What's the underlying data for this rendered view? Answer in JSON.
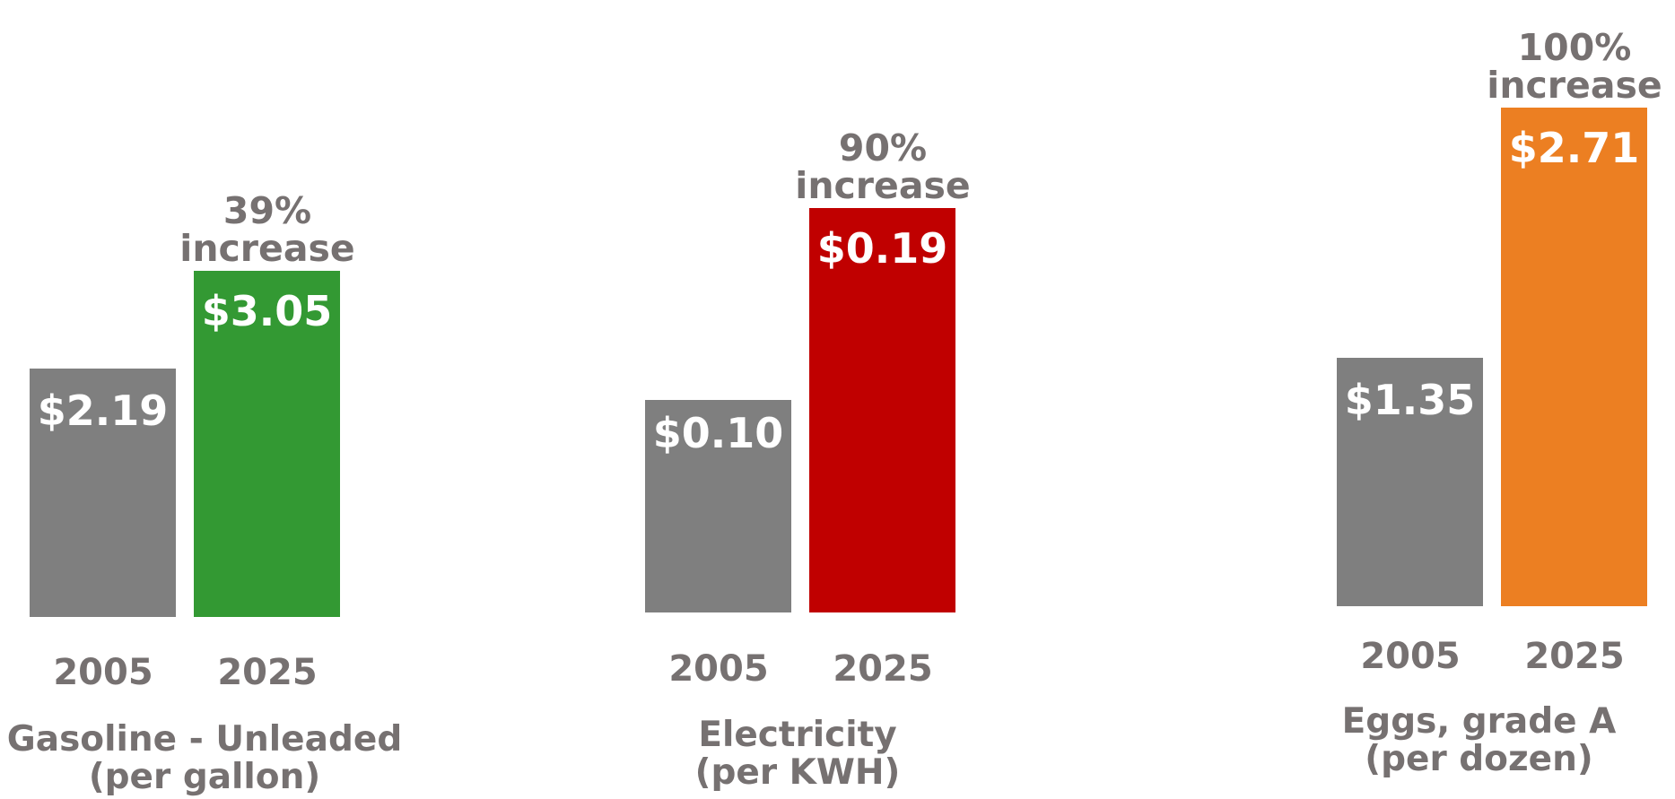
{
  "chart_data": [
    {
      "type": "bar",
      "title": "Gasoline - Unleaded",
      "subtitle": "(per gallon)",
      "categories": [
        "2005",
        "2025"
      ],
      "values": [
        2.19,
        3.05
      ],
      "value_labels": [
        "$2.19",
        "$3.05"
      ],
      "annotation": {
        "line1": "39%",
        "line2": "increase"
      },
      "colors": [
        "#7f7f7f",
        "#339933"
      ]
    },
    {
      "type": "bar",
      "title": "Electricity",
      "subtitle": "(per KWH)",
      "categories": [
        "2005",
        "2025"
      ],
      "values": [
        0.1,
        0.19
      ],
      "value_labels": [
        "$0.10",
        "$0.19"
      ],
      "annotation": {
        "line1": "90%",
        "line2": "increase"
      },
      "colors": [
        "#7f7f7f",
        "#c00000"
      ]
    },
    {
      "type": "bar",
      "title": "Eggs, grade A",
      "subtitle": "(per dozen)",
      "categories": [
        "2005",
        "2025"
      ],
      "values": [
        1.35,
        2.71
      ],
      "value_labels": [
        "$1.35",
        "$2.71"
      ],
      "annotation": {
        "line1": "100%",
        "line2": "increase"
      },
      "colors": [
        "#7f7f7f",
        "#ec7f22"
      ]
    }
  ]
}
